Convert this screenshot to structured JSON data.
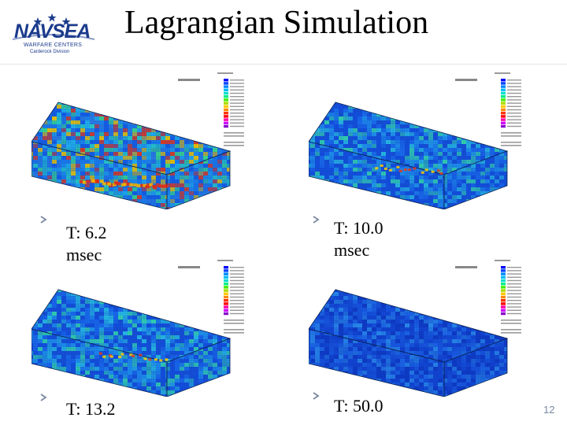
{
  "logo": {
    "name": "NAVSEA",
    "line1": "WARFARE CENTERS",
    "line2": "Carderock Division"
  },
  "title": "Lagrangian Simulation",
  "panels": [
    {
      "caption_line1": "T: 6.2",
      "caption_line2": "msec",
      "stress_level": "high"
    },
    {
      "caption_line1": "T: 10.0",
      "caption_line2": "msec",
      "stress_level": "medium"
    },
    {
      "caption_line1": "T: 13.2",
      "caption_line2": "",
      "stress_level": "medium"
    },
    {
      "caption_line1": "T: 50.0",
      "caption_line2": "",
      "stress_level": "low"
    }
  ],
  "legend_colors": [
    "#0000ff",
    "#0044ff",
    "#0088ff",
    "#00bbff",
    "#00ddcc",
    "#00ee88",
    "#44ee00",
    "#aadd00",
    "#ffcc00",
    "#ff8800",
    "#ff3300",
    "#ff0000",
    "#ff00aa",
    "#cc00ff",
    "#8800cc"
  ],
  "slide_number": "12"
}
